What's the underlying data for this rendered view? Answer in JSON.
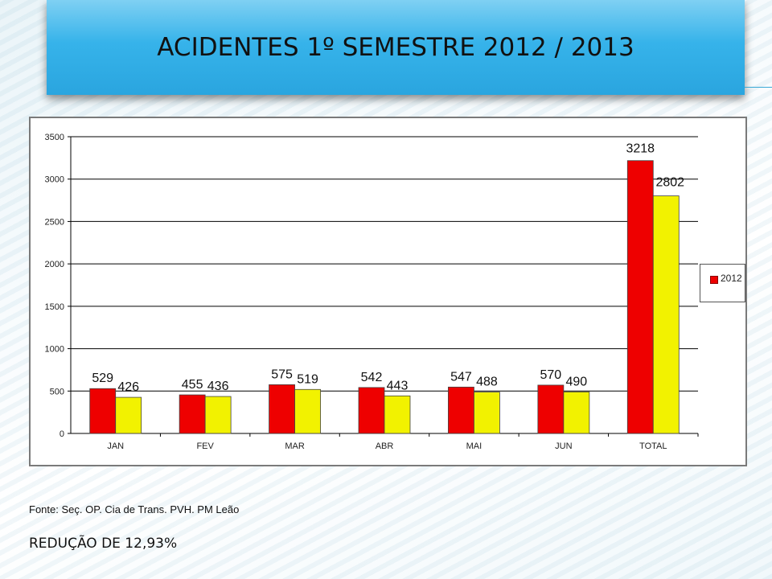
{
  "slide": {
    "title": "ACIDENTES 1º SEMESTRE 2012 / 2013",
    "source": "Fonte: Seç. OP. Cia de Trans. PVH. PM Leão",
    "summary": "REDUÇÃO DE 12,93%"
  },
  "chart_data": {
    "type": "bar",
    "title": "",
    "xlabel": "",
    "ylabel": "",
    "categories": [
      "JAN",
      "FEV",
      "MAR",
      "ABR",
      "MAI",
      "JUN",
      "TOTAL"
    ],
    "series": [
      {
        "name": "2012",
        "color": "#ee0000",
        "values": [
          529,
          455,
          575,
          542,
          547,
          570,
          3218
        ]
      },
      {
        "color": "#f2f200",
        "values": [
          426,
          436,
          519,
          443,
          488,
          490,
          2802
        ]
      }
    ],
    "ylim": [
      0,
      3500
    ],
    "yticks": [
      0,
      500,
      1000,
      1500,
      2000,
      2500,
      3000,
      3500
    ],
    "grid": true,
    "legend_position": "right",
    "legend_label": "2012"
  }
}
